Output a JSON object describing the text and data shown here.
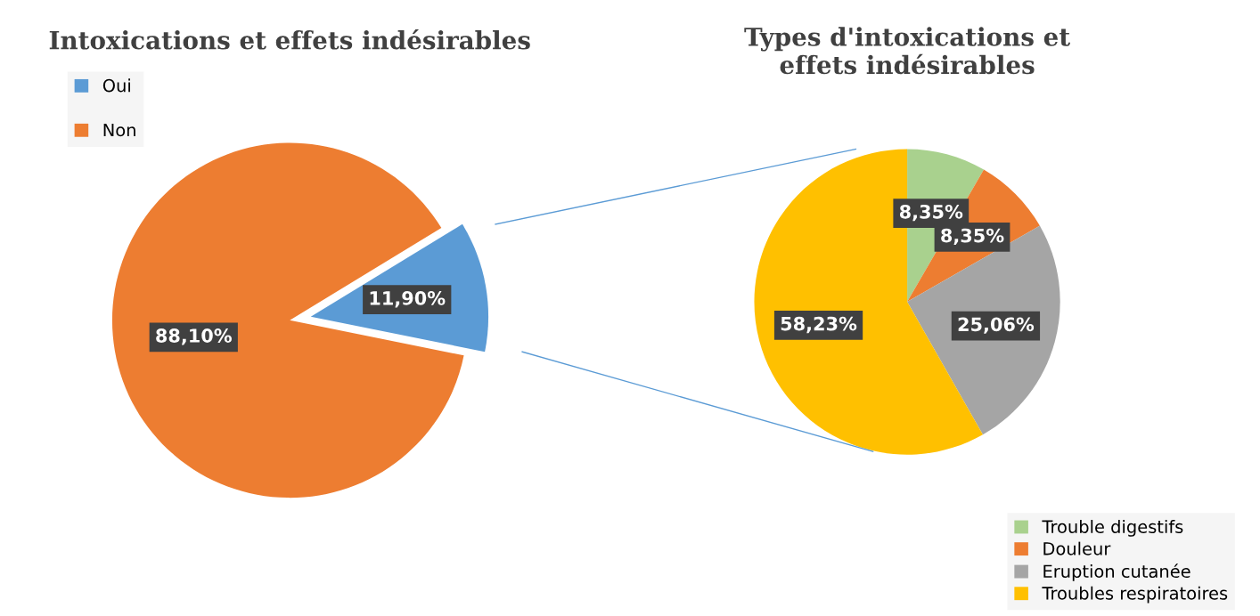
{
  "chart_data": [
    {
      "type": "pie",
      "title": "Intoxications et effets indésirables",
      "categories": [
        "Oui",
        "Non"
      ],
      "values": [
        11.9,
        88.1
      ],
      "colors": [
        "#5b9bd5",
        "#ed7d31"
      ],
      "value_labels": [
        "11,90%",
        "88,10%"
      ],
      "legend": "top left"
    },
    {
      "type": "pie",
      "title": "Types d'intoxications et effets indésirables",
      "categories": [
        "Trouble digestifs",
        "Douleur",
        "Eruption cutanée",
        "Troubles respiratoires"
      ],
      "values": [
        8.35,
        8.35,
        25.06,
        58.23
      ],
      "colors": [
        "#a9d18e",
        "#ed7d31",
        "#a5a5a5",
        "#ffc000"
      ],
      "value_labels": [
        "8,35%",
        "8,35%",
        "25,06%",
        "58,23%"
      ],
      "legend": "bottom right"
    }
  ]
}
